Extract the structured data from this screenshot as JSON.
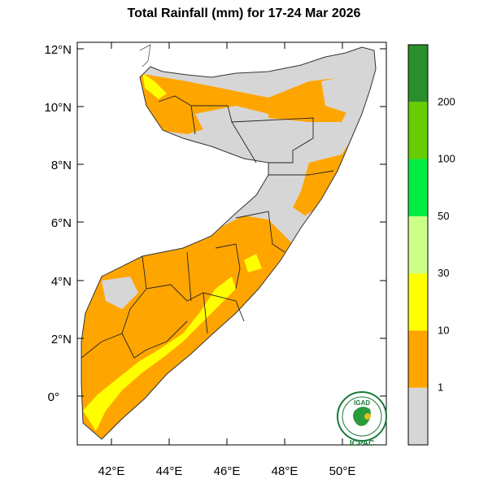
{
  "title": "Total Rainfall (mm) for 17-24 Mar 2026",
  "y_ticks": [
    "12°N",
    "10°N",
    "8°N",
    "6°N",
    "4°N",
    "2°N",
    "0°"
  ],
  "x_ticks": [
    "42°E",
    "44°E",
    "46°E",
    "48°E",
    "50°E"
  ],
  "legend": {
    "levels": [
      {
        "label": "",
        "color": "#d6d6d6"
      },
      {
        "label": "1",
        "color": "#ffa500"
      },
      {
        "label": "10",
        "color": "#ffff00"
      },
      {
        "label": "30",
        "color": "#ccff88"
      },
      {
        "label": "50",
        "color": "#00ee44"
      },
      {
        "label": "100",
        "color": "#66cc00"
      },
      {
        "label": "200",
        "color": "#2a8f2a"
      }
    ]
  },
  "logo": {
    "top_text": "IGAD",
    "bottom_text": "ICPAC"
  }
}
